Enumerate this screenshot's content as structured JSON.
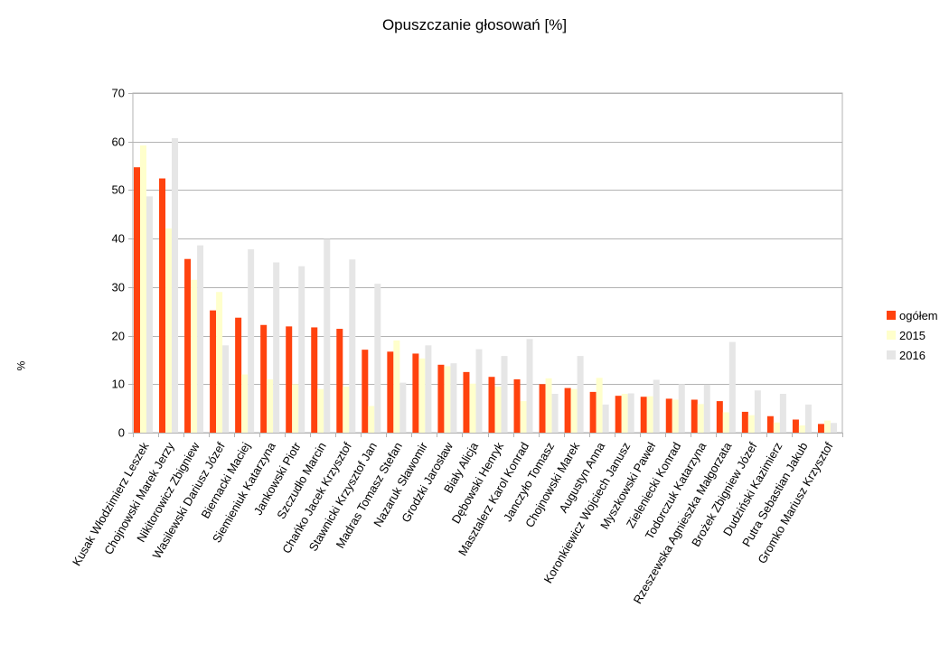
{
  "chart_data": {
    "type": "bar",
    "title": "Opuszczanie głosowań [%]",
    "xlabel": "",
    "ylabel": "%",
    "ylim": [
      0,
      70
    ],
    "yticks": [
      0,
      10,
      20,
      30,
      40,
      50,
      60,
      70
    ],
    "grid": true,
    "legend_position": "right",
    "categories": [
      "Kusak Włodzimierz Leszek",
      "Chojnowski Marek Jerzy",
      "Nikitorowicz Zbigniew",
      "Wasilewski Dariusz Józef",
      "Biernacki Maciej",
      "Siemieniuk Katarzyna",
      "Jankowski Piotr",
      "Szczudło Marcin",
      "Chańko Jacek Krzysztof",
      "Stawnicki Krzysztof Jan",
      "Madras Tomasz Stefan",
      "Nazaruk Sławomir",
      "Grodzki Jarosław",
      "Biały Alicja",
      "Dębowski Henryk",
      "Masztalerz Karol Konrad",
      "Janczyło Tomasz",
      "Chojnowski Marek",
      "Augustyn Anna",
      "Koronkiewicz Wojciech Janusz",
      "Myszkowski Paweł",
      "Zieleniecki Konrad",
      "Todorczuk Katarzyna",
      "Rzeszewska Agnieszka Małgorzata",
      "Brożek Zbigniew Józef",
      "Dudziński Kazimierz",
      "Putra Sebastian Jakub",
      "Gromko Mariusz Krzysztof"
    ],
    "series": [
      {
        "name": "ogółem",
        "color": "#ff420e",
        "values": [
          54.7,
          52.4,
          35.8,
          25.2,
          23.7,
          22.2,
          21.9,
          21.7,
          21.4,
          17.1,
          16.7,
          16.3,
          14.0,
          12.5,
          11.5,
          11.0,
          10.0,
          9.2,
          8.4,
          7.6,
          7.4,
          7.0,
          6.8,
          6.5,
          4.3,
          3.4,
          2.7,
          1.8
        ]
      },
      {
        "name": "2015",
        "color": "#ffffcc",
        "values": [
          59.2,
          42.1,
          31.5,
          29.0,
          12.0,
          11.0,
          10.0,
          9.0,
          9.5,
          5.5,
          19.0,
          15.3,
          13.7,
          10.1,
          9.5,
          6.5,
          11.2,
          9.0,
          11.3,
          8.0,
          7.5,
          6.8,
          5.9,
          4.2,
          3.6,
          2.1,
          1.5,
          2.5
        ]
      },
      {
        "name": "2016",
        "color": "#e6e6e6",
        "values": [
          48.7,
          60.7,
          38.6,
          18.0,
          37.8,
          35.1,
          34.3,
          39.9,
          35.7,
          30.7,
          10.3,
          18.0,
          14.3,
          17.2,
          15.8,
          19.3,
          8.0,
          15.8,
          5.8,
          8.1,
          10.9,
          10.0,
          9.9,
          18.7,
          8.7,
          8.0,
          5.8,
          2.0
        ]
      }
    ]
  }
}
